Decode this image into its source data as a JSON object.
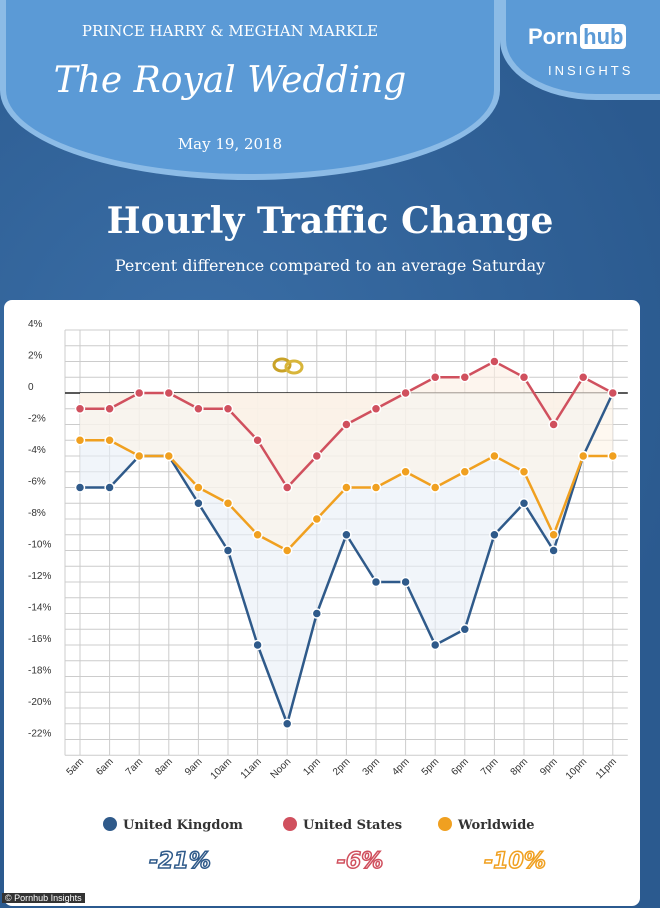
{
  "header": {
    "couple": "PRINCE HARRY & MEGHAN MARKLE",
    "event": "The Royal Wedding",
    "date": "May 19, 2018",
    "brand_a": "Porn",
    "brand_b": "hub",
    "brand_sub": "INSIGHTS"
  },
  "credit": "© Pornhub Insights",
  "chart_data": {
    "type": "line",
    "title": "Hourly Traffic Change",
    "subtitle": "Percent difference compared to an average Saturday",
    "x": [
      "5am",
      "6am",
      "7am",
      "8am",
      "9am",
      "10am",
      "11am",
      "Noon",
      "1pm",
      "2pm",
      "3pm",
      "4pm",
      "5pm",
      "6pm",
      "7pm",
      "8pm",
      "9pm",
      "10pm",
      "11pm"
    ],
    "yticks": [
      "4%",
      "2%",
      "0",
      "-2%",
      "-4%",
      "-6%",
      "-8%",
      "-10%",
      "-12%",
      "-14%",
      "-16%",
      "-18%",
      "-20%",
      "-22%"
    ],
    "ylim": [
      -22,
      4
    ],
    "series": [
      {
        "name": "United Kingdom",
        "color": "#2f5a8a",
        "summary": "-21%",
        "values": [
          -6,
          -6,
          -4,
          -4,
          -7,
          -10,
          -16,
          -21,
          -14,
          -9,
          -12,
          -12,
          -16,
          -15,
          -9,
          -7,
          -10,
          -4,
          0
        ]
      },
      {
        "name": "United States",
        "color": "#d0505e",
        "summary": "-6%",
        "values": [
          -1,
          -1,
          0,
          0,
          -1,
          -1,
          -3,
          -6,
          -4,
          -2,
          -1,
          0,
          1,
          1,
          2,
          1,
          -2,
          1,
          0
        ]
      },
      {
        "name": "Worldwide",
        "color": "#f0a020",
        "summary": "-10%",
        "values": [
          -3,
          -3,
          -4,
          -4,
          -6,
          -7,
          -9,
          -10,
          -8,
          -6,
          -6,
          -5,
          -6,
          -5,
          -4,
          -5,
          -9,
          -4,
          -4
        ]
      }
    ]
  }
}
